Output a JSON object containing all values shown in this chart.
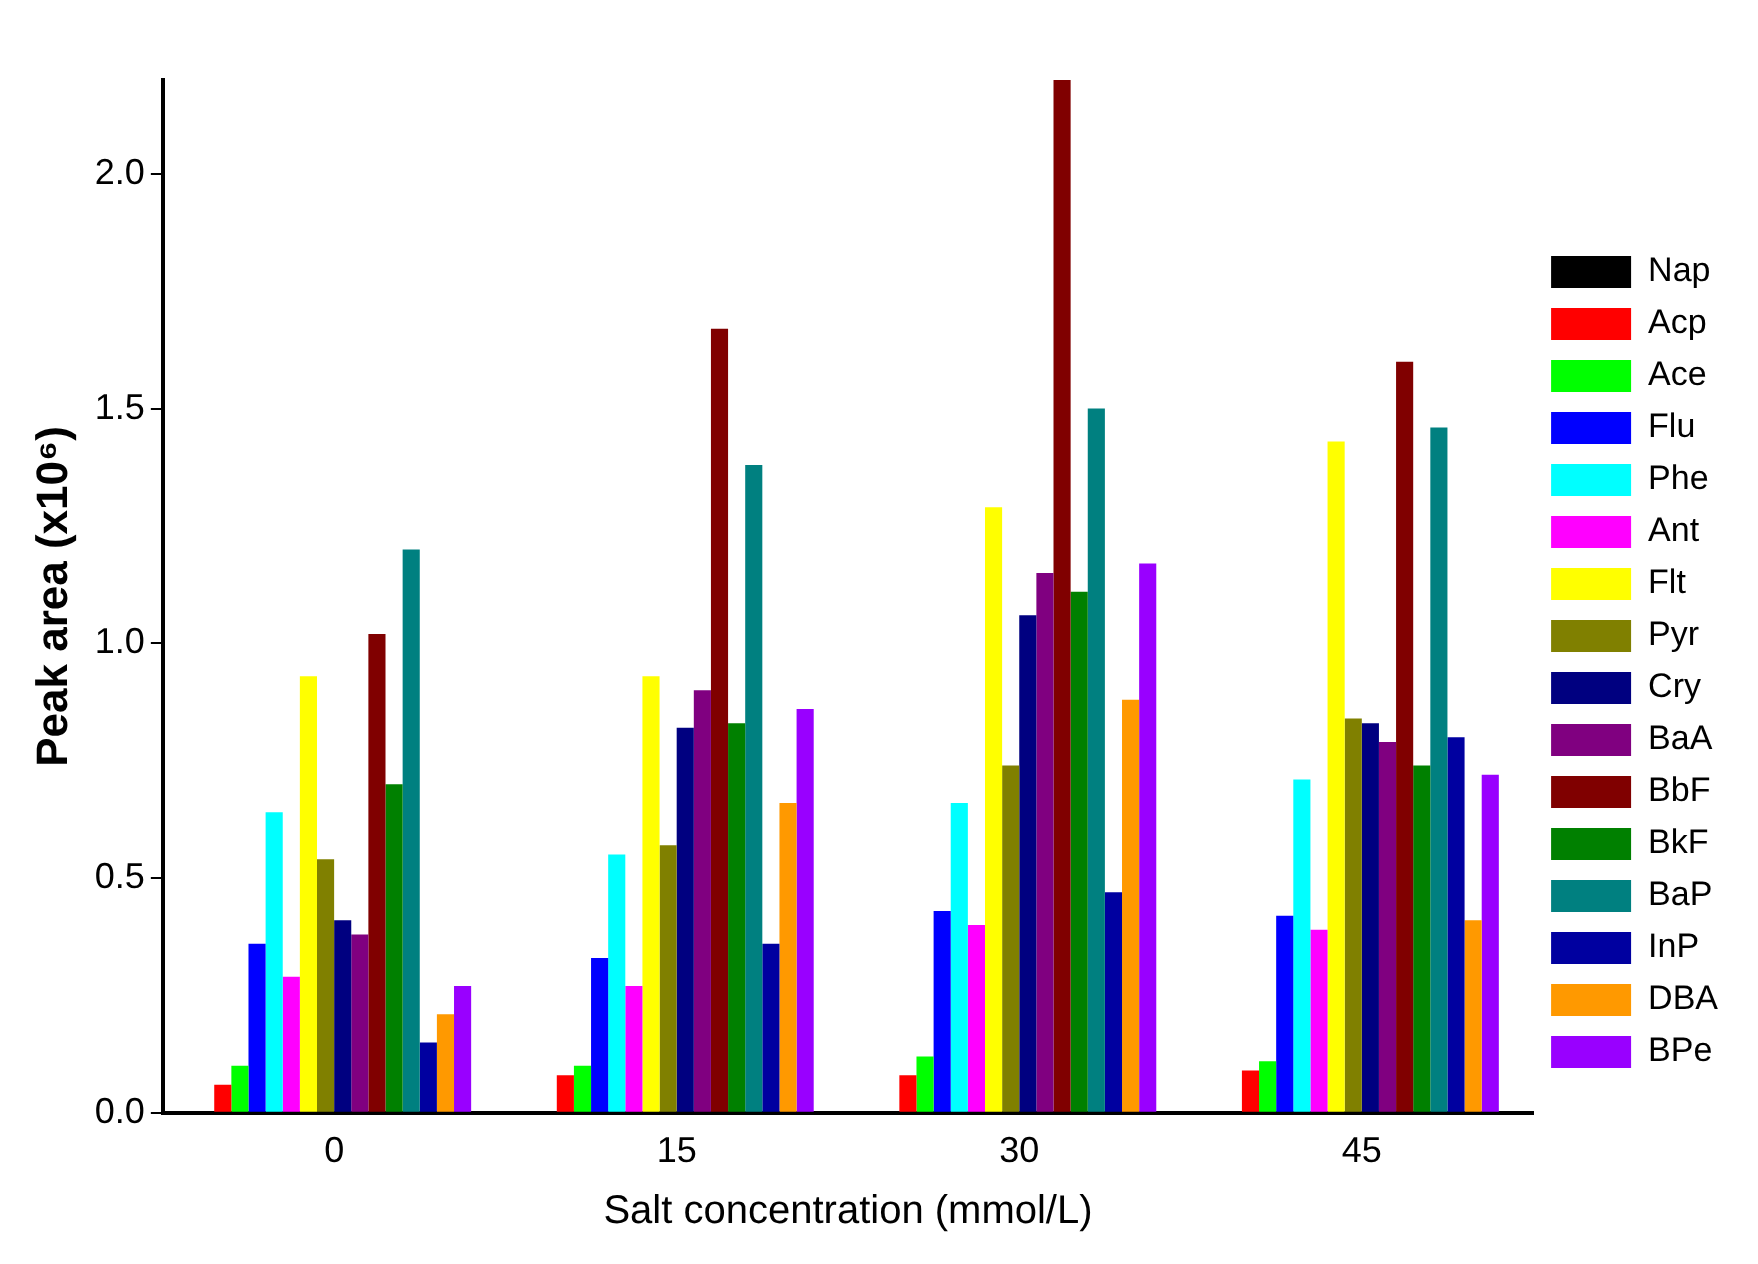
{
  "chart_data": {
    "type": "bar",
    "xlabel": "Salt concentration (mmol/L)",
    "ylabel": "Peak area (x10⁶)",
    "categories": [
      "0",
      "15",
      "30",
      "45"
    ],
    "ylim": [
      0,
      2.2
    ],
    "yticks": [
      {
        "value": 0,
        "label": "0.0"
      },
      {
        "value": 0.5,
        "label": "0.5"
      },
      {
        "value": 1,
        "label": "1.0"
      },
      {
        "value": 1.5,
        "label": "1.5"
      },
      {
        "value": 2,
        "label": "2.0"
      }
    ],
    "grid": false,
    "legend": "right",
    "series": [
      {
        "name": "Nap",
        "color": "#000000",
        "values": [
          0,
          0,
          0,
          0
        ]
      },
      {
        "name": "Acp",
        "color": "#ff0000",
        "values": [
          0.06,
          0.08,
          0.08,
          0.09
        ]
      },
      {
        "name": "Ace",
        "color": "#00ff00",
        "values": [
          0.1,
          0.1,
          0.12,
          0.11
        ]
      },
      {
        "name": "Flu",
        "color": "#0000ff",
        "values": [
          0.36,
          0.33,
          0.43,
          0.42
        ]
      },
      {
        "name": "Phe",
        "color": "#00ffff",
        "values": [
          0.64,
          0.55,
          0.66,
          0.71
        ]
      },
      {
        "name": "Ant",
        "color": "#ff00ff",
        "values": [
          0.29,
          0.27,
          0.4,
          0.39
        ]
      },
      {
        "name": "Flt",
        "color": "#ffff00",
        "values": [
          0.93,
          0.93,
          1.29,
          1.43
        ]
      },
      {
        "name": "Pyr",
        "color": "#808000",
        "values": [
          0.54,
          0.57,
          0.74,
          0.84
        ]
      },
      {
        "name": "Cry",
        "color": "#000080",
        "values": [
          0.41,
          0.82,
          1.06,
          0.83
        ]
      },
      {
        "name": "BaA",
        "color": "#800080",
        "values": [
          0.38,
          0.9,
          1.15,
          0.79
        ]
      },
      {
        "name": "BbF",
        "color": "#800000",
        "values": [
          1.02,
          1.67,
          2.2,
          1.6
        ]
      },
      {
        "name": "BkF",
        "color": "#008000",
        "values": [
          0.7,
          0.83,
          1.11,
          0.74
        ]
      },
      {
        "name": "BaP",
        "color": "#008080",
        "values": [
          1.2,
          1.38,
          1.5,
          1.46
        ]
      },
      {
        "name": "InP",
        "color": "#0000a0",
        "values": [
          0.15,
          0.36,
          0.47,
          0.8
        ]
      },
      {
        "name": "DBA",
        "color": "#ff9900",
        "values": [
          0.21,
          0.66,
          0.88,
          0.41
        ]
      },
      {
        "name": "BPe",
        "color": "#9900ff",
        "values": [
          0.27,
          0.86,
          1.17,
          0.72
        ]
      }
    ]
  }
}
